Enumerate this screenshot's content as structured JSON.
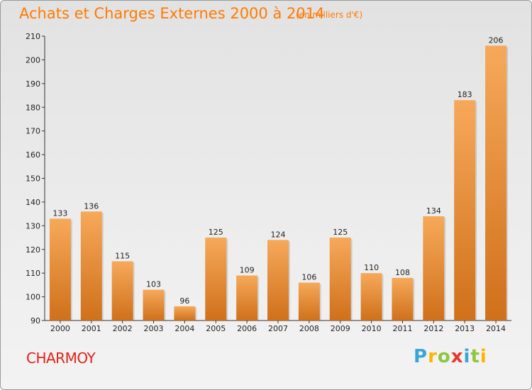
{
  "title": "Achats et Charges Externes 2000 à 2014",
  "subtitle": "(en milliers d'€)",
  "commune": "CHARMOY",
  "logo": {
    "letters": [
      "P",
      "r",
      "o",
      "x",
      "i",
      "t",
      "i"
    ]
  },
  "colors": {
    "title": "#ff7a00",
    "commune": "#e0221a",
    "bar_light": "#f5a550",
    "bar_dark": "#d4741c"
  },
  "chart_data": {
    "type": "bar",
    "title": "Achats et Charges Externes 2000 à 2014",
    "subtitle": "(en milliers d'€)",
    "xlabel": "",
    "ylabel": "",
    "categories": [
      "2000",
      "2001",
      "2002",
      "2003",
      "2004",
      "2005",
      "2006",
      "2007",
      "2008",
      "2009",
      "2010",
      "2011",
      "2012",
      "2013",
      "2014"
    ],
    "values": [
      133,
      136,
      115,
      103,
      96,
      125,
      109,
      124,
      106,
      125,
      110,
      108,
      134,
      183,
      206
    ],
    "ylim": [
      90,
      210
    ],
    "yticks": [
      90,
      100,
      110,
      120,
      130,
      140,
      150,
      160,
      170,
      180,
      190,
      200,
      210
    ],
    "grid": false,
    "legend": "none"
  }
}
